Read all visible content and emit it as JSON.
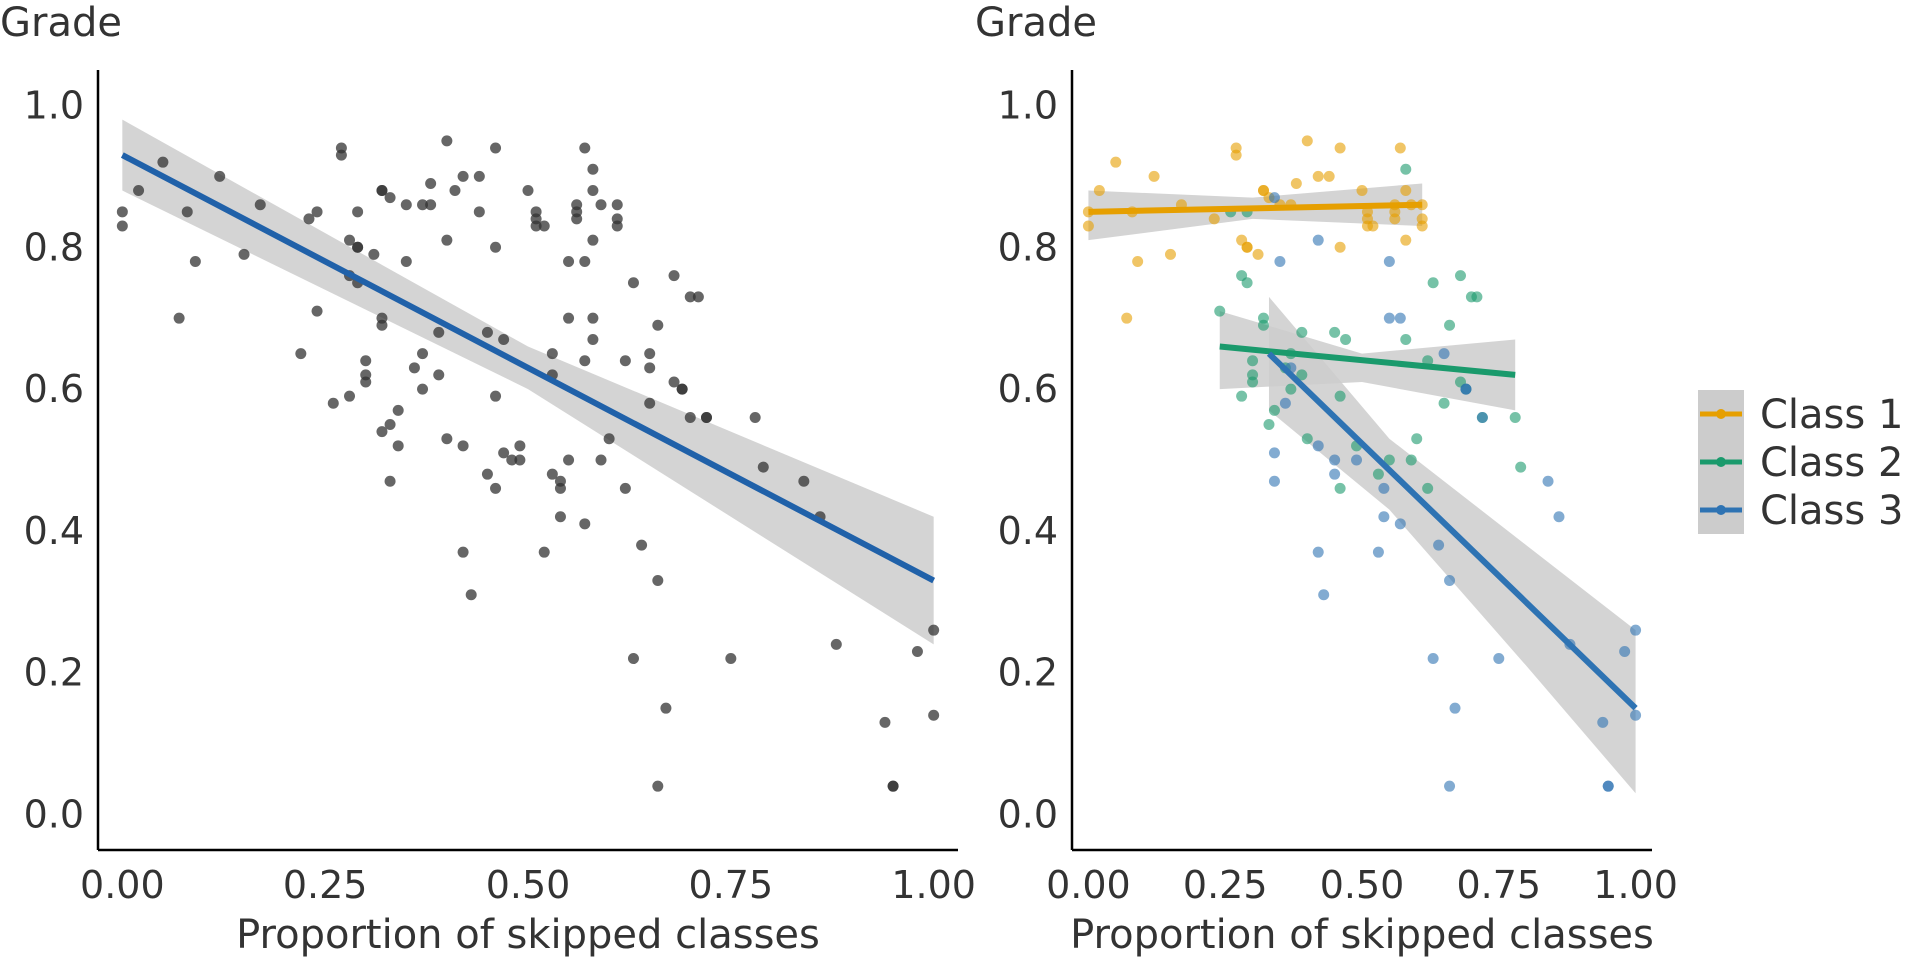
{
  "chart_data": [
    {
      "type": "scatter",
      "title": "",
      "ylabel": "Grade",
      "xlabel": "Proportion of skipped classes",
      "xlim": [
        -0.03,
        1.03
      ],
      "ylim": [
        -0.05,
        1.05
      ],
      "xticks": [
        "0.00",
        "0.25",
        "0.50",
        "0.75",
        "1.00"
      ],
      "yticks": [
        "0.0",
        "0.2",
        "0.4",
        "0.6",
        "0.8",
        "1.0"
      ],
      "grid": false,
      "legend": "none",
      "point_color": "#333333",
      "points": [
        [
          0.0,
          0.85
        ],
        [
          0.0,
          0.83
        ],
        [
          0.02,
          0.88
        ],
        [
          0.05,
          0.92
        ],
        [
          0.07,
          0.7
        ],
        [
          0.08,
          0.85
        ],
        [
          0.09,
          0.78
        ],
        [
          0.12,
          0.9
        ],
        [
          0.15,
          0.79
        ],
        [
          0.17,
          0.86
        ],
        [
          0.22,
          0.65
        ],
        [
          0.23,
          0.84
        ],
        [
          0.24,
          0.71
        ],
        [
          0.24,
          0.85
        ],
        [
          0.26,
          0.58
        ],
        [
          0.27,
          0.93
        ],
        [
          0.27,
          0.94
        ],
        [
          0.28,
          0.76
        ],
        [
          0.28,
          0.81
        ],
        [
          0.28,
          0.59
        ],
        [
          0.29,
          0.8
        ],
        [
          0.29,
          0.85
        ],
        [
          0.29,
          0.75
        ],
        [
          0.29,
          0.8
        ],
        [
          0.3,
          0.64
        ],
        [
          0.3,
          0.61
        ],
        [
          0.3,
          0.62
        ],
        [
          0.31,
          0.79
        ],
        [
          0.32,
          0.54
        ],
        [
          0.32,
          0.69
        ],
        [
          0.32,
          0.7
        ],
        [
          0.32,
          0.88
        ],
        [
          0.32,
          0.88
        ],
        [
          0.33,
          0.87
        ],
        [
          0.33,
          0.55
        ],
        [
          0.33,
          0.47
        ],
        [
          0.34,
          0.52
        ],
        [
          0.34,
          0.57
        ],
        [
          0.35,
          0.86
        ],
        [
          0.35,
          0.78
        ],
        [
          0.36,
          0.63
        ],
        [
          0.37,
          0.65
        ],
        [
          0.37,
          0.6
        ],
        [
          0.37,
          0.86
        ],
        [
          0.38,
          0.86
        ],
        [
          0.38,
          0.89
        ],
        [
          0.39,
          0.68
        ],
        [
          0.39,
          0.62
        ],
        [
          0.4,
          0.95
        ],
        [
          0.4,
          0.81
        ],
        [
          0.4,
          0.53
        ],
        [
          0.41,
          0.88
        ],
        [
          0.42,
          0.9
        ],
        [
          0.42,
          0.52
        ],
        [
          0.42,
          0.37
        ],
        [
          0.43,
          0.31
        ],
        [
          0.44,
          0.9
        ],
        [
          0.44,
          0.85
        ],
        [
          0.45,
          0.68
        ],
        [
          0.45,
          0.48
        ],
        [
          0.46,
          0.94
        ],
        [
          0.46,
          0.8
        ],
        [
          0.46,
          0.59
        ],
        [
          0.46,
          0.46
        ],
        [
          0.47,
          0.67
        ],
        [
          0.47,
          0.51
        ],
        [
          0.48,
          0.5
        ],
        [
          0.49,
          0.5
        ],
        [
          0.49,
          0.52
        ],
        [
          0.5,
          0.88
        ],
        [
          0.51,
          0.84
        ],
        [
          0.51,
          0.85
        ],
        [
          0.51,
          0.83
        ],
        [
          0.52,
          0.83
        ],
        [
          0.52,
          0.37
        ],
        [
          0.53,
          0.65
        ],
        [
          0.53,
          0.62
        ],
        [
          0.53,
          0.48
        ],
        [
          0.54,
          0.46
        ],
        [
          0.54,
          0.47
        ],
        [
          0.54,
          0.42
        ],
        [
          0.55,
          0.78
        ],
        [
          0.55,
          0.7
        ],
        [
          0.55,
          0.5
        ],
        [
          0.56,
          0.86
        ],
        [
          0.56,
          0.85
        ],
        [
          0.56,
          0.84
        ],
        [
          0.57,
          0.94
        ],
        [
          0.57,
          0.78
        ],
        [
          0.57,
          0.64
        ],
        [
          0.57,
          0.41
        ],
        [
          0.58,
          0.91
        ],
        [
          0.58,
          0.88
        ],
        [
          0.58,
          0.81
        ],
        [
          0.58,
          0.67
        ],
        [
          0.58,
          0.7
        ],
        [
          0.59,
          0.86
        ],
        [
          0.59,
          0.5
        ],
        [
          0.6,
          0.53
        ],
        [
          0.61,
          0.86
        ],
        [
          0.61,
          0.84
        ],
        [
          0.61,
          0.83
        ],
        [
          0.62,
          0.46
        ],
        [
          0.62,
          0.64
        ],
        [
          0.63,
          0.75
        ],
        [
          0.63,
          0.22
        ],
        [
          0.64,
          0.38
        ],
        [
          0.65,
          0.63
        ],
        [
          0.65,
          0.58
        ],
        [
          0.65,
          0.65
        ],
        [
          0.66,
          0.69
        ],
        [
          0.66,
          0.33
        ],
        [
          0.66,
          0.04
        ],
        [
          0.67,
          0.15
        ],
        [
          0.68,
          0.76
        ],
        [
          0.68,
          0.61
        ],
        [
          0.69,
          0.6
        ],
        [
          0.69,
          0.6
        ],
        [
          0.7,
          0.73
        ],
        [
          0.7,
          0.56
        ],
        [
          0.71,
          0.73
        ],
        [
          0.72,
          0.56
        ],
        [
          0.72,
          0.56
        ],
        [
          0.75,
          0.22
        ],
        [
          0.78,
          0.56
        ],
        [
          0.79,
          0.49
        ],
        [
          0.84,
          0.47
        ],
        [
          0.86,
          0.42
        ],
        [
          0.88,
          0.24
        ],
        [
          0.94,
          0.13
        ],
        [
          0.95,
          0.04
        ],
        [
          0.95,
          0.04
        ],
        [
          0.98,
          0.23
        ],
        [
          1.0,
          0.26
        ],
        [
          1.0,
          0.14
        ]
      ],
      "fit": {
        "color": "#2061A9",
        "line": [
          [
            0.0,
            0.93
          ],
          [
            1.0,
            0.33
          ]
        ],
        "ci_upper": [
          [
            0.0,
            0.98
          ],
          [
            0.5,
            0.66
          ],
          [
            1.0,
            0.42
          ]
        ],
        "ci_lower": [
          [
            0.0,
            0.88
          ],
          [
            0.5,
            0.6
          ],
          [
            1.0,
            0.24
          ]
        ]
      }
    },
    {
      "type": "scatter",
      "title": "",
      "ylabel": "Grade",
      "xlabel": "Proportion of skipped classes",
      "xlim": [
        -0.03,
        1.03
      ],
      "ylim": [
        -0.05,
        1.05
      ],
      "xticks": [
        "0.00",
        "0.25",
        "0.50",
        "0.75",
        "1.00"
      ],
      "yticks": [
        "0.0",
        "0.2",
        "0.4",
        "0.6",
        "0.8",
        "1.0"
      ],
      "grid": false,
      "legend": "right",
      "series": [
        {
          "name": "Class 1",
          "color": "#E69F00",
          "points": [
            [
              0.0,
              0.85
            ],
            [
              0.0,
              0.83
            ],
            [
              0.02,
              0.88
            ],
            [
              0.05,
              0.92
            ],
            [
              0.07,
              0.7
            ],
            [
              0.08,
              0.85
            ],
            [
              0.09,
              0.78
            ],
            [
              0.12,
              0.9
            ],
            [
              0.15,
              0.79
            ],
            [
              0.17,
              0.86
            ],
            [
              0.23,
              0.84
            ],
            [
              0.27,
              0.93
            ],
            [
              0.27,
              0.94
            ],
            [
              0.28,
              0.81
            ],
            [
              0.29,
              0.8
            ],
            [
              0.29,
              0.8
            ],
            [
              0.31,
              0.79
            ],
            [
              0.32,
              0.88
            ],
            [
              0.32,
              0.88
            ],
            [
              0.33,
              0.87
            ],
            [
              0.35,
              0.86
            ],
            [
              0.37,
              0.86
            ],
            [
              0.38,
              0.89
            ],
            [
              0.4,
              0.95
            ],
            [
              0.42,
              0.9
            ],
            [
              0.44,
              0.9
            ],
            [
              0.46,
              0.94
            ],
            [
              0.46,
              0.8
            ],
            [
              0.5,
              0.88
            ],
            [
              0.51,
              0.84
            ],
            [
              0.51,
              0.85
            ],
            [
              0.51,
              0.83
            ],
            [
              0.52,
              0.83
            ],
            [
              0.56,
              0.86
            ],
            [
              0.56,
              0.85
            ],
            [
              0.56,
              0.84
            ],
            [
              0.57,
              0.94
            ],
            [
              0.58,
              0.88
            ],
            [
              0.58,
              0.81
            ],
            [
              0.59,
              0.86
            ],
            [
              0.61,
              0.86
            ],
            [
              0.61,
              0.84
            ],
            [
              0.61,
              0.83
            ]
          ],
          "fit": {
            "line": [
              [
                0.0,
                0.85
              ],
              [
                0.61,
                0.86
              ]
            ],
            "ci_upper": [
              [
                0.0,
                0.88
              ],
              [
                0.3,
                0.87
              ],
              [
                0.61,
                0.89
              ]
            ],
            "ci_lower": [
              [
                0.0,
                0.81
              ],
              [
                0.3,
                0.84
              ],
              [
                0.61,
                0.83
              ]
            ]
          }
        },
        {
          "name": "Class 2",
          "color": "#1A9A6C",
          "points": [
            [
              0.24,
              0.71
            ],
            [
              0.26,
              0.85
            ],
            [
              0.28,
              0.76
            ],
            [
              0.28,
              0.59
            ],
            [
              0.29,
              0.85
            ],
            [
              0.29,
              0.75
            ],
            [
              0.3,
              0.64
            ],
            [
              0.3,
              0.61
            ],
            [
              0.3,
              0.62
            ],
            [
              0.32,
              0.69
            ],
            [
              0.32,
              0.7
            ],
            [
              0.33,
              0.55
            ],
            [
              0.34,
              0.57
            ],
            [
              0.36,
              0.63
            ],
            [
              0.37,
              0.65
            ],
            [
              0.37,
              0.6
            ],
            [
              0.39,
              0.68
            ],
            [
              0.39,
              0.62
            ],
            [
              0.4,
              0.53
            ],
            [
              0.45,
              0.68
            ],
            [
              0.46,
              0.59
            ],
            [
              0.46,
              0.46
            ],
            [
              0.47,
              0.67
            ],
            [
              0.49,
              0.52
            ],
            [
              0.53,
              0.48
            ],
            [
              0.55,
              0.5
            ],
            [
              0.58,
              0.91
            ],
            [
              0.58,
              0.67
            ],
            [
              0.59,
              0.5
            ],
            [
              0.6,
              0.53
            ],
            [
              0.62,
              0.46
            ],
            [
              0.62,
              0.64
            ],
            [
              0.63,
              0.75
            ],
            [
              0.65,
              0.58
            ],
            [
              0.66,
              0.69
            ],
            [
              0.68,
              0.76
            ],
            [
              0.68,
              0.61
            ],
            [
              0.69,
              0.6
            ],
            [
              0.7,
              0.73
            ],
            [
              0.71,
              0.73
            ],
            [
              0.72,
              0.56
            ],
            [
              0.78,
              0.56
            ],
            [
              0.79,
              0.49
            ]
          ],
          "fit": {
            "line": [
              [
                0.24,
                0.66
              ],
              [
                0.78,
                0.62
              ]
            ],
            "ci_upper": [
              [
                0.24,
                0.71
              ],
              [
                0.5,
                0.65
              ],
              [
                0.78,
                0.67
              ]
            ],
            "ci_lower": [
              [
                0.24,
                0.6
              ],
              [
                0.5,
                0.61
              ],
              [
                0.78,
                0.57
              ]
            ]
          }
        },
        {
          "name": "Class 3",
          "color": "#2E73B3",
          "points": [
            [
              0.34,
              0.87
            ],
            [
              0.34,
              0.51
            ],
            [
              0.34,
              0.47
            ],
            [
              0.35,
              0.78
            ],
            [
              0.36,
              0.58
            ],
            [
              0.37,
              0.63
            ],
            [
              0.42,
              0.81
            ],
            [
              0.42,
              0.52
            ],
            [
              0.42,
              0.37
            ],
            [
              0.43,
              0.31
            ],
            [
              0.45,
              0.48
            ],
            [
              0.45,
              0.5
            ],
            [
              0.49,
              0.5
            ],
            [
              0.53,
              0.37
            ],
            [
              0.54,
              0.46
            ],
            [
              0.54,
              0.42
            ],
            [
              0.55,
              0.78
            ],
            [
              0.55,
              0.7
            ],
            [
              0.57,
              0.7
            ],
            [
              0.57,
              0.41
            ],
            [
              0.63,
              0.22
            ],
            [
              0.64,
              0.38
            ],
            [
              0.65,
              0.65
            ],
            [
              0.66,
              0.33
            ],
            [
              0.66,
              0.04
            ],
            [
              0.67,
              0.15
            ],
            [
              0.69,
              0.6
            ],
            [
              0.69,
              0.6
            ],
            [
              0.72,
              0.56
            ],
            [
              0.75,
              0.22
            ],
            [
              0.84,
              0.47
            ],
            [
              0.86,
              0.42
            ],
            [
              0.88,
              0.24
            ],
            [
              0.94,
              0.13
            ],
            [
              0.95,
              0.04
            ],
            [
              0.95,
              0.04
            ],
            [
              0.98,
              0.23
            ],
            [
              1.0,
              0.26
            ],
            [
              1.0,
              0.14
            ]
          ],
          "fit": {
            "line": [
              [
                0.33,
                0.65
              ],
              [
                1.0,
                0.15
              ]
            ],
            "ci_upper": [
              [
                0.33,
                0.73
              ],
              [
                0.55,
                0.53
              ],
              [
                0.8,
                0.38
              ],
              [
                1.0,
                0.26
              ]
            ],
            "ci_lower": [
              [
                0.33,
                0.57
              ],
              [
                0.55,
                0.43
              ],
              [
                0.8,
                0.21
              ],
              [
                1.0,
                0.03
              ]
            ]
          }
        }
      ]
    }
  ]
}
